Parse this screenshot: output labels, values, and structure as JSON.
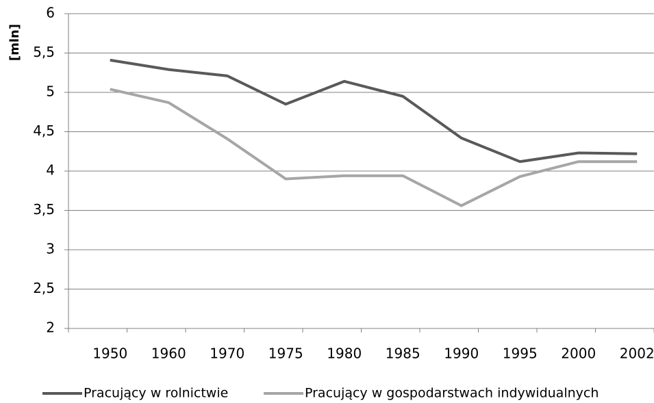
{
  "chart_data": {
    "type": "line",
    "y_label": "[mln]",
    "categories": [
      "1950",
      "1960",
      "1970",
      "1975",
      "1980",
      "1985",
      "1990",
      "1995",
      "2000",
      "2002"
    ],
    "series": [
      {
        "name": "Pracujący w rolnictwie",
        "color": "#595959",
        "values": [
          5.41,
          5.29,
          5.21,
          4.85,
          5.14,
          4.95,
          4.42,
          4.12,
          4.23,
          4.22
        ]
      },
      {
        "name": "Pracujący w gospodarstwach indywidualnych",
        "color": "#a6a6a6",
        "values": [
          5.04,
          4.87,
          4.41,
          3.9,
          3.94,
          3.94,
          3.56,
          3.93,
          4.12,
          4.12
        ]
      }
    ],
    "ylim": [
      2,
      6
    ],
    "yticks": [
      2,
      {
        "value": 2.5,
        "label": "2,5"
      },
      3,
      {
        "value": 3.5,
        "label": "3,5"
      },
      4,
      {
        "value": 4.5,
        "label": "4,5"
      },
      5,
      {
        "value": 5.5,
        "label": "5,5"
      },
      6
    ],
    "grid": true,
    "legend": "bottom"
  }
}
